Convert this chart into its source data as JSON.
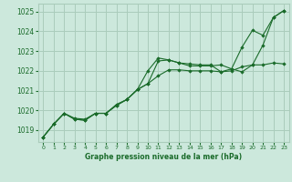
{
  "background_color": "#cce8dc",
  "grid_color": "#aaccbb",
  "line_color": "#1a6b2a",
  "marker_color": "#1a6b2a",
  "xlabel": "Graphe pression niveau de la mer (hPa)",
  "xlabel_color": "#1a6b2a",
  "xlim": [
    -0.5,
    23.5
  ],
  "ylim": [
    1018.4,
    1025.4
  ],
  "yticks": [
    1019,
    1020,
    1021,
    1022,
    1023,
    1024,
    1025
  ],
  "xticks": [
    0,
    1,
    2,
    3,
    4,
    5,
    6,
    7,
    8,
    9,
    10,
    11,
    12,
    13,
    14,
    15,
    16,
    17,
    18,
    19,
    20,
    21,
    22,
    23
  ],
  "series": [
    [
      1018.65,
      1019.3,
      1019.85,
      1019.6,
      1019.55,
      1019.85,
      1019.85,
      1020.3,
      1020.55,
      1021.05,
      1022.0,
      1022.65,
      1022.55,
      1022.4,
      1022.35,
      1022.3,
      1022.3,
      1021.95,
      1022.1,
      1023.2,
      1024.05,
      1023.8,
      1024.7,
      1025.05
    ],
    [
      1018.65,
      1019.3,
      1019.85,
      1019.55,
      1019.5,
      1019.85,
      1019.85,
      1020.25,
      1020.55,
      1021.05,
      1021.35,
      1021.75,
      1022.05,
      1022.05,
      1022.0,
      1022.0,
      1022.0,
      1021.95,
      1022.0,
      1022.2,
      1022.3,
      1022.3,
      1022.4,
      1022.35
    ],
    [
      1018.65,
      1019.3,
      1019.85,
      1019.55,
      1019.5,
      1019.85,
      1019.85,
      1020.25,
      1020.55,
      1021.05,
      1021.35,
      1022.5,
      1022.55,
      1022.4,
      1022.25,
      1022.25,
      1022.25,
      1022.3,
      1022.1,
      1021.95,
      1022.3,
      1023.3,
      1024.7,
      1025.05
    ]
  ]
}
